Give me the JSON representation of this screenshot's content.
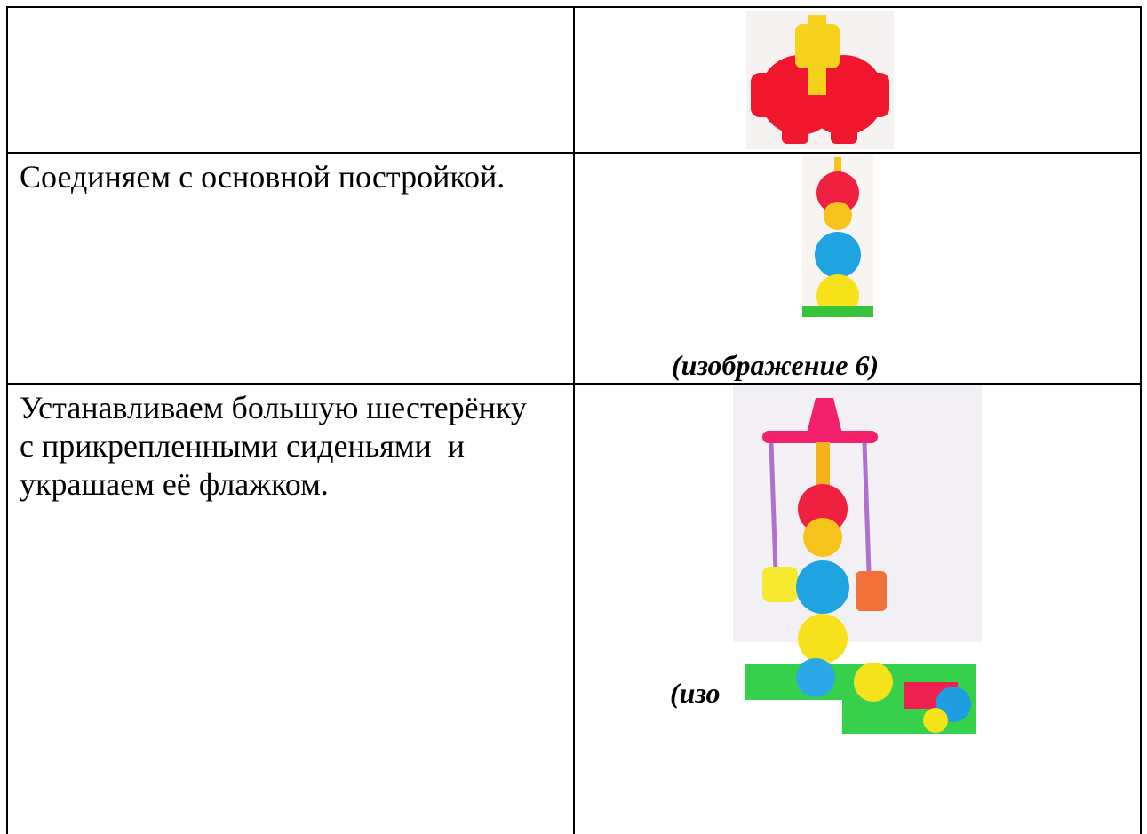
{
  "table": {
    "rows": [
      {
        "text": null,
        "caption": null
      },
      {
        "text": [
          "Соединяем с основной постройкой."
        ],
        "caption": "(изображение 6)"
      },
      {
        "text": [
          "Устанавливаем большую шестерёнку",
          "с прикрепленными сиденьями  и",
          "украшаем её флажком."
        ],
        "caption": "(изо"
      }
    ]
  }
}
